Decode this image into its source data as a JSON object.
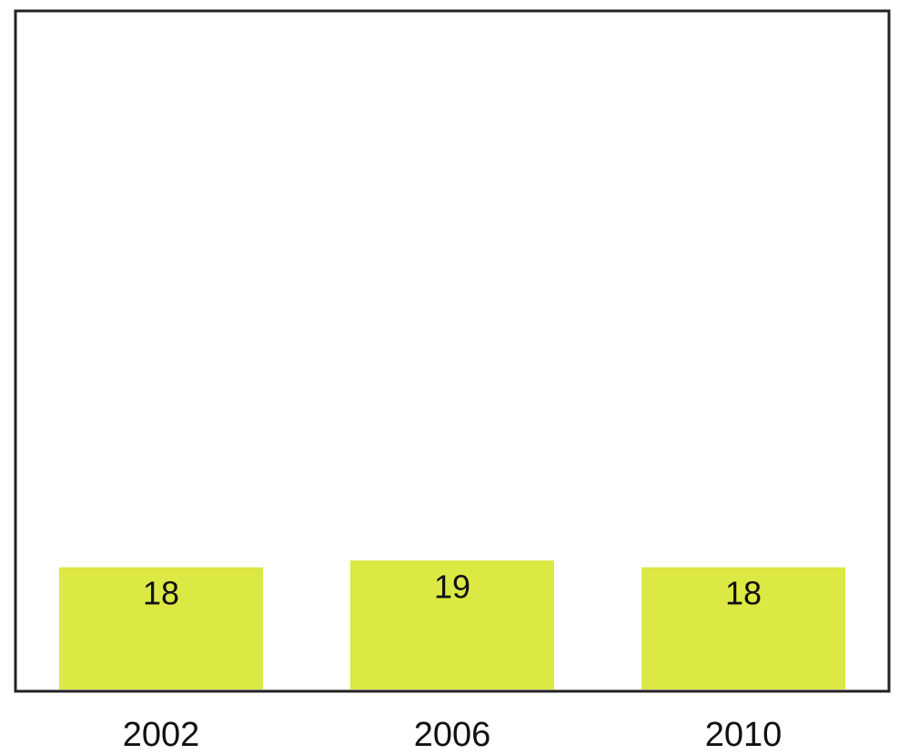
{
  "chart_data": {
    "type": "bar",
    "categories": [
      "2002",
      "2006",
      "2010"
    ],
    "values": [
      18,
      19,
      18
    ],
    "title": "",
    "xlabel": "",
    "ylabel": "",
    "ylim": [
      0,
      100
    ],
    "grid": false,
    "bar_color": "#dce843",
    "axis_color": "#222222"
  }
}
